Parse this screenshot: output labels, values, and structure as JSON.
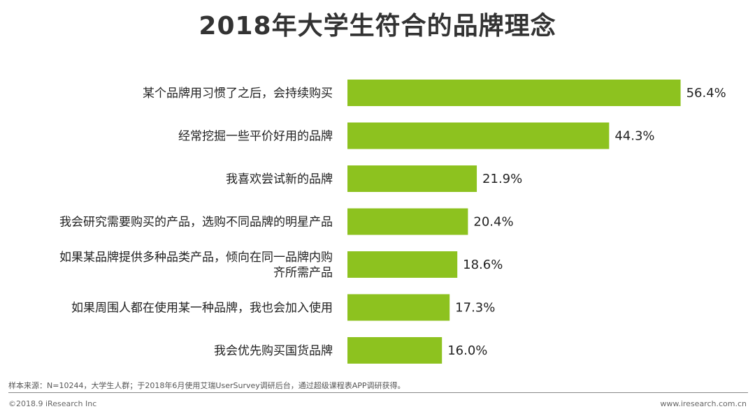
{
  "chart_data": {
    "type": "bar",
    "orientation": "horizontal",
    "title": "2018年大学生符合的品牌理念",
    "categories": [
      [
        "某个品牌用习惯了之后，会持续购买"
      ],
      [
        "经常挖掘一些平价好用的品牌"
      ],
      [
        "我喜欢尝试新的品牌"
      ],
      [
        "我会研究需要购买的产品，选购不同品牌的明星产品"
      ],
      [
        "如果某品牌提供多种品类产品，倾向在同一品牌内购",
        "齐所需产品"
      ],
      [
        "如果周围人都在使用某一种品牌，我也会加入使用"
      ],
      [
        "我会优先购买国货品牌"
      ]
    ],
    "values": [
      56.4,
      44.3,
      21.9,
      20.4,
      18.6,
      17.3,
      16.0
    ],
    "value_labels": [
      "56.4%",
      "44.3%",
      "21.9%",
      "20.4%",
      "18.6%",
      "17.3%",
      "16.0%"
    ],
    "unit": "%",
    "xlim": [
      0,
      60
    ],
    "bar_color": "#8DC21F",
    "grid": false,
    "legend": "none"
  },
  "footer": {
    "source_note": "样本来源：N=10244，大学生人群；于2018年6月使用艾瑞UserSurvey调研后台，通过超级课程表APP调研获得。",
    "copyright": "©2018.9 iResearch Inc",
    "website": "www.iresearch.com.cn"
  }
}
